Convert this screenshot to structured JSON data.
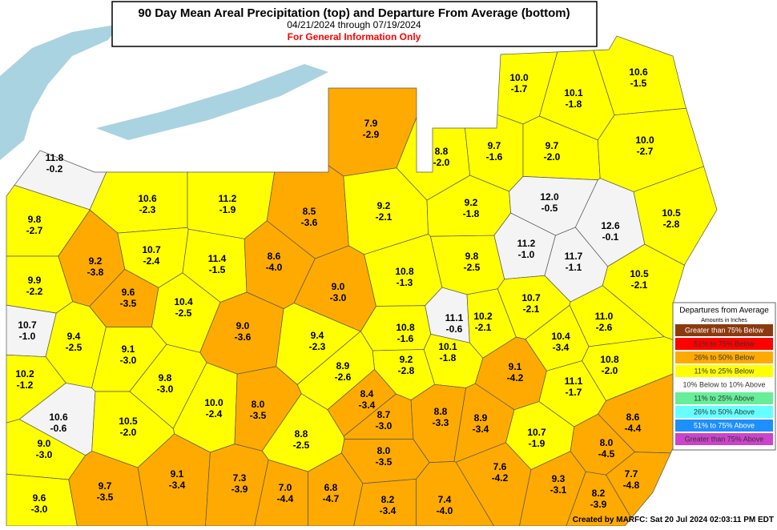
{
  "header": {
    "title": "90 Day Mean Areal Precipitation (top) and Departure From Average (bottom)",
    "dates": "04/21/2024 through 07/19/2024",
    "notice": "For General Information Only"
  },
  "legend": {
    "title": "Departures from Average",
    "subtitle": "Amounts in Inches",
    "items": [
      {
        "label": "Greater than 75% Below",
        "color": "#8b3a0f"
      },
      {
        "label": "51% to 75% Below",
        "color": "#ff0000"
      },
      {
        "label": "26% to 50% Below",
        "color": "#ffaa00"
      },
      {
        "label": "11% to 25% Below",
        "color": "#ffff00"
      },
      {
        "label": "10% Below to 10% Above",
        "color": "#ffffff"
      },
      {
        "label": "11% to 25% Above",
        "color": "#66ee99"
      },
      {
        "label": "26% to 50% Above",
        "color": "#66ffff"
      },
      {
        "label": "51% to 75% Above",
        "color": "#1e8fff"
      },
      {
        "label": "Greater than 75% Above",
        "color": "#cc44cc"
      }
    ]
  },
  "regions": [
    {
      "precip": "11.8",
      "departure": "-0.2",
      "color": "#f4f4f4"
    },
    {
      "precip": "7.9",
      "departure": "-2.9",
      "color": "#ffaa00"
    },
    {
      "precip": "8.8",
      "departure": "-2.0",
      "color": "#ffff00"
    },
    {
      "precip": "9.7",
      "departure": "-1.6",
      "color": "#ffff00"
    },
    {
      "precip": "10.0",
      "departure": "-1.7",
      "color": "#ffff00"
    },
    {
      "precip": "10.1",
      "departure": "-1.8",
      "color": "#ffff00"
    },
    {
      "precip": "10.6",
      "departure": "-1.5",
      "color": "#ffff00"
    },
    {
      "precip": "9.7",
      "departure": "-2.0",
      "color": "#ffff00"
    },
    {
      "precip": "10.0",
      "departure": "-2.7",
      "color": "#ffff00"
    },
    {
      "precip": "10.6",
      "departure": "-2.3",
      "color": "#ffff00"
    },
    {
      "precip": "11.2",
      "departure": "-1.9",
      "color": "#ffff00"
    },
    {
      "precip": "8.5",
      "departure": "-3.6",
      "color": "#ffaa00"
    },
    {
      "precip": "9.2",
      "departure": "-2.1",
      "color": "#ffff00"
    },
    {
      "precip": "9.2",
      "departure": "-1.8",
      "color": "#ffff00"
    },
    {
      "precip": "12.0",
      "departure": "-0.5",
      "color": "#f4f4f4"
    },
    {
      "precip": "12.6",
      "departure": "-0.1",
      "color": "#f4f4f4"
    },
    {
      "precip": "10.5",
      "departure": "-2.8",
      "color": "#ffff00"
    },
    {
      "precip": "9.8",
      "departure": "-2.7",
      "color": "#ffff00"
    },
    {
      "precip": "9.2",
      "departure": "-3.8",
      "color": "#ffaa00"
    },
    {
      "precip": "10.7",
      "departure": "-2.4",
      "color": "#ffff00"
    },
    {
      "precip": "11.4",
      "departure": "-1.5",
      "color": "#ffff00"
    },
    {
      "precip": "8.6",
      "departure": "-4.0",
      "color": "#ffaa00"
    },
    {
      "precip": "9.0",
      "departure": "-3.0",
      "color": "#ffaa00"
    },
    {
      "precip": "10.8",
      "departure": "-1.3",
      "color": "#ffff00"
    },
    {
      "precip": "9.8",
      "departure": "-2.5",
      "color": "#ffff00"
    },
    {
      "precip": "11.2",
      "departure": "-1.0",
      "color": "#f4f4f4"
    },
    {
      "precip": "11.7",
      "departure": "-1.1",
      "color": "#f4f4f4"
    },
    {
      "precip": "10.5",
      "departure": "-2.1",
      "color": "#ffff00"
    },
    {
      "precip": "9.9",
      "departure": "-2.2",
      "color": "#ffff00"
    },
    {
      "precip": "9.6",
      "departure": "-3.5",
      "color": "#ffaa00"
    },
    {
      "precip": "10.4",
      "departure": "-2.5",
      "color": "#ffff00"
    },
    {
      "precip": "9.0",
      "departure": "-3.6",
      "color": "#ffaa00"
    },
    {
      "precip": "9.4",
      "departure": "-2.3",
      "color": "#ffff00"
    },
    {
      "precip": "10.8",
      "departure": "-1.6",
      "color": "#ffff00"
    },
    {
      "precip": "11.1",
      "departure": "-0.6",
      "color": "#f4f4f4"
    },
    {
      "precip": "10.2",
      "departure": "-2.1",
      "color": "#ffff00"
    },
    {
      "precip": "10.7",
      "departure": "-2.1",
      "color": "#ffff00"
    },
    {
      "precip": "11.0",
      "departure": "-2.6",
      "color": "#ffff00"
    },
    {
      "precip": "10.7",
      "departure": "-1.0",
      "color": "#f4f4f4"
    },
    {
      "precip": "9.4",
      "departure": "-2.5",
      "color": "#ffff00"
    },
    {
      "precip": "9.1",
      "departure": "-3.0",
      "color": "#ffff00"
    },
    {
      "precip": "10.1",
      "departure": "-1.8",
      "color": "#ffff00"
    },
    {
      "precip": "9.2",
      "departure": "-2.8",
      "color": "#ffff00"
    },
    {
      "precip": "10.4",
      "departure": "-3.4",
      "color": "#ffff00"
    },
    {
      "precip": "9.1",
      "departure": "-4.2",
      "color": "#ffaa00"
    },
    {
      "precip": "10.8",
      "departure": "-2.0",
      "color": "#ffff00"
    },
    {
      "precip": "10.2",
      "departure": "-1.2",
      "color": "#ffff00"
    },
    {
      "precip": "9.8",
      "departure": "-3.0",
      "color": "#ffff00"
    },
    {
      "precip": "8.9",
      "departure": "-2.6",
      "color": "#ffff00"
    },
    {
      "precip": "8.4",
      "departure": "-3.4",
      "color": "#ffaa00"
    },
    {
      "precip": "11.1",
      "departure": "-1.7",
      "color": "#ffff00"
    },
    {
      "precip": "10.6",
      "departure": "-0.6",
      "color": "#f4f4f4"
    },
    {
      "precip": "10.0",
      "departure": "-2.4",
      "color": "#ffff00"
    },
    {
      "precip": "8.0",
      "departure": "-3.5",
      "color": "#ffaa00"
    },
    {
      "precip": "8.8",
      "departure": "-2.5",
      "color": "#ffff00"
    },
    {
      "precip": "8.7",
      "departure": "-3.0",
      "color": "#ffaa00"
    },
    {
      "precip": "8.8",
      "departure": "-3.3",
      "color": "#ffaa00"
    },
    {
      "precip": "8.9",
      "departure": "-3.4",
      "color": "#ffaa00"
    },
    {
      "precip": "10.7",
      "departure": "-1.9",
      "color": "#ffff00"
    },
    {
      "precip": "8.6",
      "departure": "-4.4",
      "color": "#ffaa00"
    },
    {
      "precip": "10.5",
      "departure": "-2.0",
      "color": "#ffff00"
    },
    {
      "precip": "9.0",
      "departure": "-3.0",
      "color": "#ffff00"
    },
    {
      "precip": "8.0",
      "departure": "-3.5",
      "color": "#ffaa00"
    },
    {
      "precip": "8.0",
      "departure": "-4.5",
      "color": "#ffaa00"
    },
    {
      "precip": "9.1",
      "departure": "-3.4",
      "color": "#ffaa00"
    },
    {
      "precip": "7.3",
      "departure": "-3.9",
      "color": "#ffaa00"
    },
    {
      "precip": "7.0",
      "departure": "-4.4",
      "color": "#ffaa00"
    },
    {
      "precip": "6.8",
      "departure": "-4.7",
      "color": "#ffaa00"
    },
    {
      "precip": "7.6",
      "departure": "-4.2",
      "color": "#ffaa00"
    },
    {
      "precip": "7.7",
      "departure": "-4.8",
      "color": "#ffaa00"
    },
    {
      "precip": "9.3",
      "departure": "-3.1",
      "color": "#ffaa00"
    },
    {
      "precip": "9.7",
      "departure": "-3.5",
      "color": "#ffaa00"
    },
    {
      "precip": "9.6",
      "departure": "-3.0",
      "color": "#ffff00"
    },
    {
      "precip": "8.2",
      "departure": "-3.4",
      "color": "#ffaa00"
    },
    {
      "precip": "7.4",
      "departure": "-4.0",
      "color": "#ffaa00"
    },
    {
      "precip": "8.2",
      "departure": "-3.9",
      "color": "#ffaa00"
    }
  ],
  "footer": "Created by MARFC: Sat 20 Jul 2024 02:03:11 PM EDT"
}
